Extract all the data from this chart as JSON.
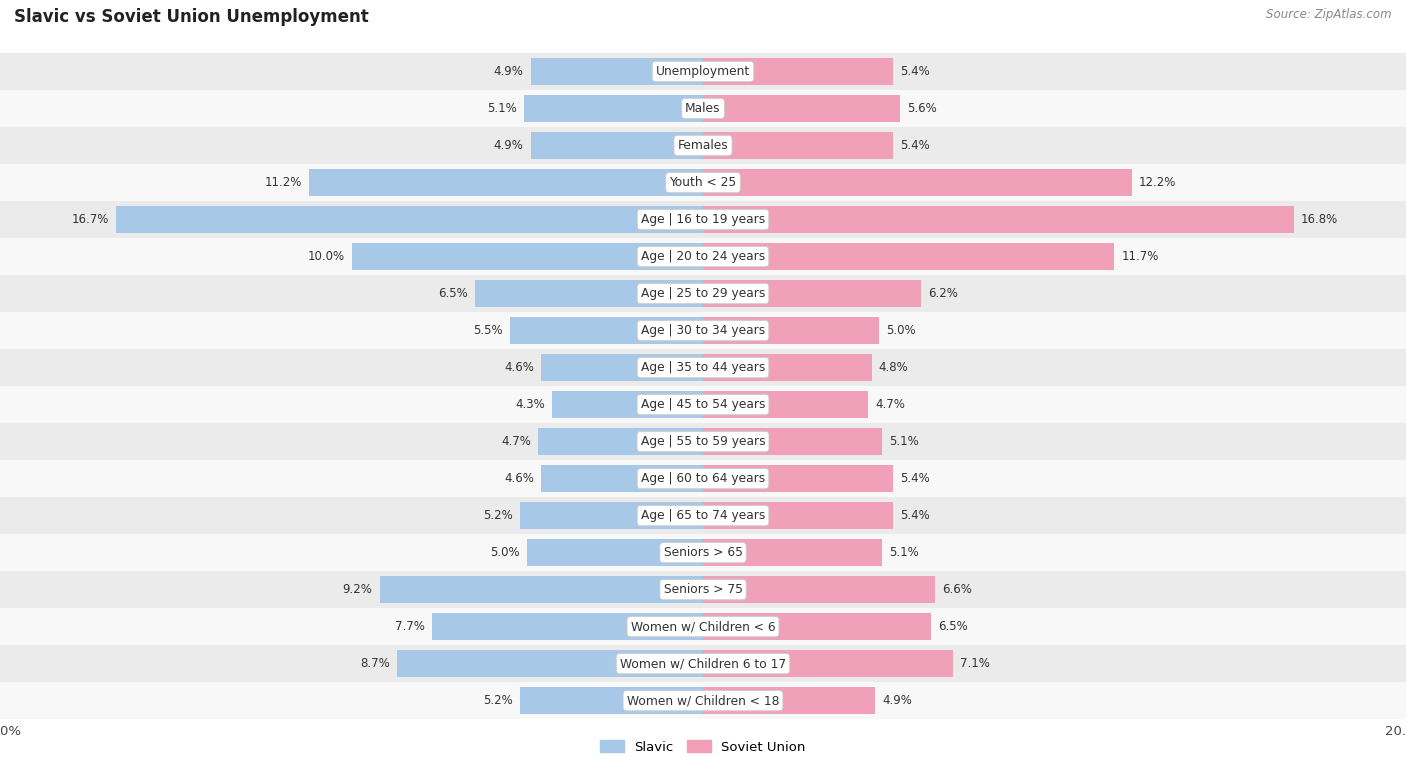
{
  "title": "Slavic vs Soviet Union Unemployment",
  "source": "Source: ZipAtlas.com",
  "categories": [
    "Unemployment",
    "Males",
    "Females",
    "Youth < 25",
    "Age | 16 to 19 years",
    "Age | 20 to 24 years",
    "Age | 25 to 29 years",
    "Age | 30 to 34 years",
    "Age | 35 to 44 years",
    "Age | 45 to 54 years",
    "Age | 55 to 59 years",
    "Age | 60 to 64 years",
    "Age | 65 to 74 years",
    "Seniors > 65",
    "Seniors > 75",
    "Women w/ Children < 6",
    "Women w/ Children 6 to 17",
    "Women w/ Children < 18"
  ],
  "slavic": [
    4.9,
    5.1,
    4.9,
    11.2,
    16.7,
    10.0,
    6.5,
    5.5,
    4.6,
    4.3,
    4.7,
    4.6,
    5.2,
    5.0,
    9.2,
    7.7,
    8.7,
    5.2
  ],
  "soviet": [
    5.4,
    5.6,
    5.4,
    12.2,
    16.8,
    11.7,
    6.2,
    5.0,
    4.8,
    4.7,
    5.1,
    5.4,
    5.4,
    5.1,
    6.6,
    6.5,
    7.1,
    4.9
  ],
  "slavic_color": "#a8c8e8",
  "soviet_color": "#f0a0b8",
  "slavic_label": "Slavic",
  "soviet_label": "Soviet Union",
  "axis_limit": 20.0,
  "bg_row_even": "#ebebeb",
  "bg_row_odd": "#f8f8f8",
  "bar_height": 0.72,
  "label_fontsize": 9.5,
  "category_fontsize": 8.8,
  "title_fontsize": 12,
  "value_fontsize": 8.5,
  "source_fontsize": 8.5
}
